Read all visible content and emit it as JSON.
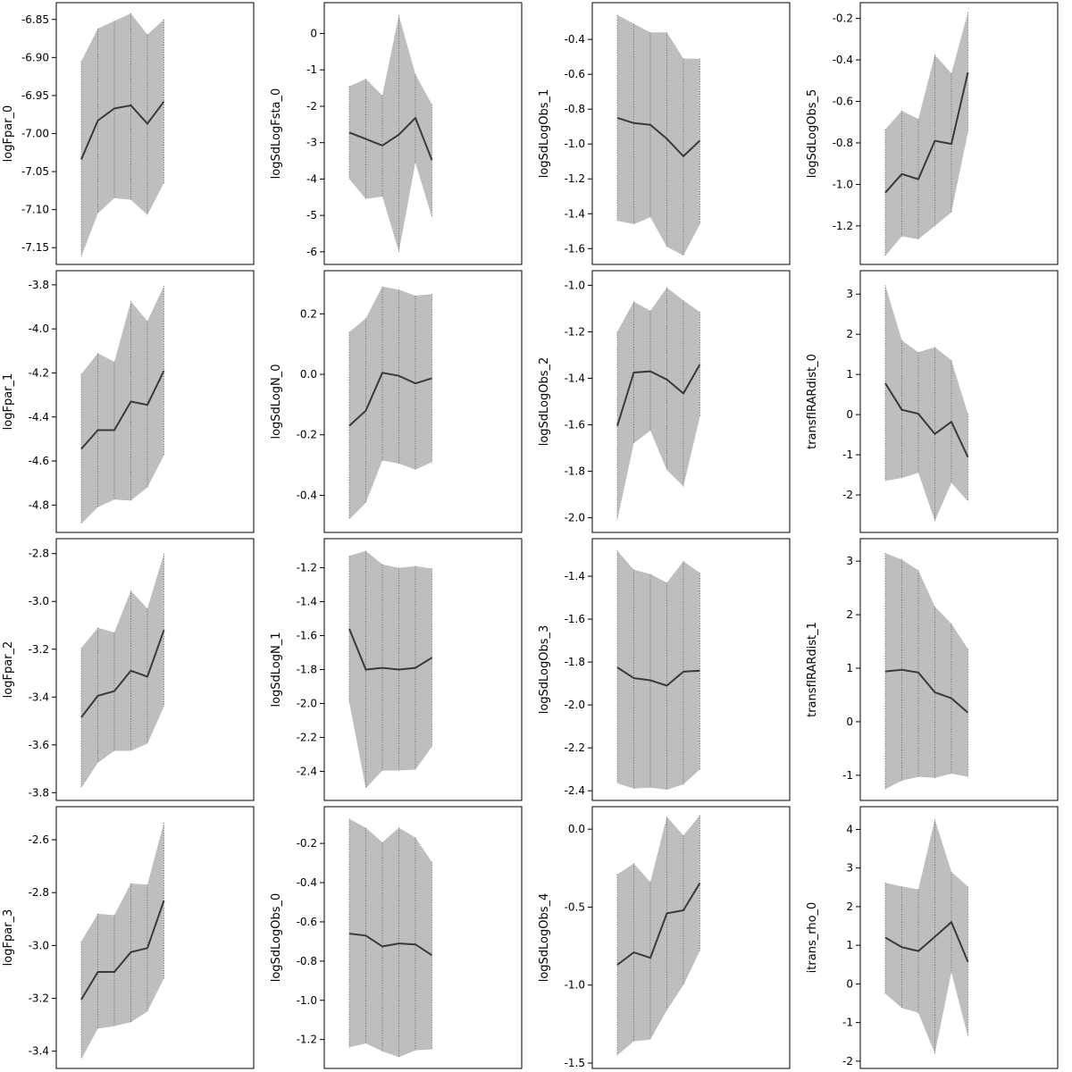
{
  "chart_data": [
    {
      "type": "area",
      "ylabel": "logFpar_0",
      "x": [
        1,
        2,
        3,
        4,
        5,
        6
      ],
      "yticks": [
        -6.85,
        -6.9,
        -6.95,
        -7.0,
        -7.05,
        -7.1,
        -7.15
      ],
      "ytick_labels": [
        "-6.85",
        "-6.90",
        "-6.95",
        "-7.00",
        "-7.05",
        "-7.10",
        "-7.15"
      ],
      "ylim": [
        -7.165,
        -6.835
      ],
      "mean": [
        -7.034,
        -6.983,
        -6.967,
        -6.963,
        -6.987,
        -6.958
      ],
      "upper": [
        -6.905,
        -6.862,
        -6.852,
        -6.842,
        -6.87,
        -6.85
      ],
      "lower": [
        -7.162,
        -7.105,
        -7.085,
        -7.087,
        -7.107,
        -7.065
      ]
    },
    {
      "type": "area",
      "ylabel": "logSdLogFsta_0",
      "x": [
        1,
        2,
        3,
        4,
        5,
        6
      ],
      "yticks": [
        0,
        -1,
        -2,
        -3,
        -4,
        -5,
        -6
      ],
      "ytick_labels": [
        "0",
        "-1",
        "-2",
        "-3",
        "-4",
        "-5",
        "-6"
      ],
      "ylim": [
        -6.2,
        0.7
      ],
      "mean": [
        -2.72,
        -2.9,
        -3.08,
        -2.78,
        -2.32,
        -3.48
      ],
      "upper": [
        -1.45,
        -1.25,
        -1.7,
        0.5,
        -1.12,
        -1.95
      ],
      "lower": [
        -4.0,
        -4.55,
        -4.48,
        -6.0,
        -3.55,
        -5.05
      ]
    },
    {
      "type": "area",
      "ylabel": "logSdLogObs_1",
      "x": [
        1,
        2,
        3,
        4,
        5,
        6
      ],
      "yticks": [
        -0.4,
        -0.6,
        -0.8,
        -1.0,
        -1.2,
        -1.4,
        -1.6
      ],
      "ytick_labels": [
        "-0.4",
        "-0.6",
        "-0.8",
        "-1.0",
        "-1.2",
        "-1.4",
        "-1.6"
      ],
      "ylim": [
        -1.66,
        -0.22
      ],
      "mean": [
        -0.85,
        -0.88,
        -0.89,
        -0.97,
        -1.07,
        -0.98
      ],
      "upper": [
        -0.26,
        -0.31,
        -0.36,
        -0.36,
        -0.51,
        -0.51
      ],
      "lower": [
        -1.44,
        -1.46,
        -1.42,
        -1.59,
        -1.64,
        -1.46
      ]
    },
    {
      "type": "area",
      "ylabel": "logSdLogObs_5",
      "x": [
        1,
        2,
        3,
        4,
        5,
        6
      ],
      "yticks": [
        -0.2,
        -0.4,
        -0.6,
        -0.8,
        -1.0,
        -1.2
      ],
      "ytick_labels": [
        "-0.2",
        "-0.4",
        "-0.6",
        "-0.8",
        "-1.0",
        "-1.2"
      ],
      "ylim": [
        -1.36,
        -0.15
      ],
      "mean": [
        -1.04,
        -0.95,
        -0.975,
        -0.79,
        -0.805,
        -0.46
      ],
      "upper": [
        -0.735,
        -0.645,
        -0.685,
        -0.375,
        -0.465,
        -0.17
      ],
      "lower": [
        -1.345,
        -1.25,
        -1.265,
        -1.2,
        -1.135,
        -0.75
      ]
    },
    {
      "type": "area",
      "ylabel": "logFpar_1",
      "x": [
        1,
        2,
        3,
        4,
        5,
        6
      ],
      "yticks": [
        -3.8,
        -4.0,
        -4.2,
        -4.4,
        -4.6,
        -4.8
      ],
      "ytick_labels": [
        "-3.8",
        "-4.0",
        "-4.2",
        "-4.4",
        "-4.6",
        "-4.8"
      ],
      "ylim": [
        -4.9,
        -3.76
      ],
      "mean": [
        -4.545,
        -4.46,
        -4.46,
        -4.33,
        -4.345,
        -4.19
      ],
      "upper": [
        -4.205,
        -4.11,
        -4.15,
        -3.875,
        -3.965,
        -3.805
      ],
      "lower": [
        -4.885,
        -4.81,
        -4.775,
        -4.78,
        -4.72,
        -4.575
      ]
    },
    {
      "type": "area",
      "ylabel": "logSdLogN_0",
      "x": [
        1,
        2,
        3,
        4,
        5,
        6
      ],
      "yticks": [
        0.2,
        0.0,
        -0.2,
        -0.4
      ],
      "ytick_labels": [
        "0.2",
        "0.0",
        "-0.2",
        "-0.4"
      ],
      "ylim": [
        -0.505,
        0.325
      ],
      "mean": [
        -0.17,
        -0.12,
        0.005,
        -0.005,
        -0.03,
        -0.013
      ],
      "upper": [
        0.14,
        0.185,
        0.29,
        0.28,
        0.26,
        0.265
      ],
      "lower": [
        -0.48,
        -0.425,
        -0.285,
        -0.295,
        -0.315,
        -0.29
      ]
    },
    {
      "type": "area",
      "ylabel": "logSdLogObs_2",
      "x": [
        1,
        2,
        3,
        4,
        5,
        6
      ],
      "yticks": [
        -1.0,
        -1.2,
        -1.4,
        -1.6,
        -1.8,
        -2.0
      ],
      "ytick_labels": [
        "-1.0",
        "-1.2",
        "-1.4",
        "-1.6",
        "-1.8",
        "-2.0"
      ],
      "ylim": [
        -2.04,
        -0.96
      ],
      "mean": [
        -1.605,
        -1.375,
        -1.37,
        -1.405,
        -1.465,
        -1.34
      ],
      "upper": [
        -1.2,
        -1.07,
        -1.11,
        -1.01,
        -1.065,
        -1.115
      ],
      "lower": [
        -2.01,
        -1.68,
        -1.625,
        -1.795,
        -1.865,
        -1.565
      ]
    },
    {
      "type": "area",
      "ylabel": "transfIRARdist_0",
      "x": [
        1,
        2,
        3,
        4,
        5,
        6
      ],
      "yticks": [
        3,
        2,
        1,
        0,
        -1,
        -2
      ],
      "ytick_labels": [
        "3",
        "2",
        "1",
        "0",
        "-1",
        "-2"
      ],
      "ylim": [
        -2.8,
        3.45
      ],
      "mean": [
        0.78,
        0.12,
        0.02,
        -0.48,
        -0.18,
        -1.06
      ],
      "upper": [
        3.22,
        1.85,
        1.55,
        1.68,
        1.35,
        0.02
      ],
      "lower": [
        -1.65,
        -1.58,
        -1.45,
        -2.65,
        -1.7,
        -2.16
      ]
    },
    {
      "type": "area",
      "ylabel": "logFpar_2",
      "x": [
        1,
        2,
        3,
        4,
        5,
        6
      ],
      "yticks": [
        -2.8,
        -3.0,
        -3.2,
        -3.4,
        -3.6,
        -3.8
      ],
      "ytick_labels": [
        "-2.8",
        "-3.0",
        "-3.2",
        "-3.4",
        "-3.6",
        "-3.8"
      ],
      "ylim": [
        -3.81,
        -2.76
      ],
      "mean": [
        -3.485,
        -3.395,
        -3.375,
        -3.29,
        -3.315,
        -3.12
      ],
      "upper": [
        -3.195,
        -3.11,
        -3.13,
        -2.955,
        -3.03,
        -2.8
      ],
      "lower": [
        -3.78,
        -3.675,
        -3.625,
        -3.625,
        -3.595,
        -3.44
      ]
    },
    {
      "type": "area",
      "ylabel": "logSdLogN_1",
      "x": [
        1,
        2,
        3,
        4,
        5,
        6
      ],
      "yticks": [
        -1.2,
        -1.4,
        -1.6,
        -1.8,
        -2.0,
        -2.2,
        -2.4
      ],
      "ytick_labels": [
        "-1.2",
        "-1.4",
        "-1.6",
        "-1.8",
        "-2.0",
        "-2.2",
        "-2.4"
      ],
      "ylim": [
        -2.54,
        -1.06
      ],
      "mean": [
        -1.56,
        -1.8,
        -1.79,
        -1.8,
        -1.79,
        -1.73
      ],
      "upper": [
        -1.13,
        -1.1,
        -1.18,
        -1.2,
        -1.19,
        -1.205
      ],
      "lower": [
        -1.995,
        -2.5,
        -2.395,
        -2.395,
        -2.39,
        -2.255
      ]
    },
    {
      "type": "area",
      "ylabel": "logSdLogObs_3",
      "x": [
        1,
        2,
        3,
        4,
        5,
        6
      ],
      "yticks": [
        -1.4,
        -1.6,
        -1.8,
        -2.0,
        -2.2,
        -2.4
      ],
      "ytick_labels": [
        "-1.4",
        "-1.6",
        "-1.8",
        "-2.0",
        "-2.2",
        "-2.4"
      ],
      "ylim": [
        -2.42,
        -1.25
      ],
      "mean": [
        -1.825,
        -1.875,
        -1.885,
        -1.91,
        -1.845,
        -1.84
      ],
      "upper": [
        -1.28,
        -1.37,
        -1.39,
        -1.43,
        -1.33,
        -1.385
      ],
      "lower": [
        -2.365,
        -2.39,
        -2.385,
        -2.395,
        -2.37,
        -2.3
      ]
    },
    {
      "type": "area",
      "ylabel": "transfIRARdist_1",
      "x": [
        1,
        2,
        3,
        4,
        5,
        6
      ],
      "yticks": [
        3,
        2,
        1,
        0,
        -1
      ],
      "ytick_labels": [
        "3",
        "2",
        "1",
        "0",
        "-1"
      ],
      "ylim": [
        -1.37,
        3.32
      ],
      "mean": [
        0.94,
        0.97,
        0.92,
        0.55,
        0.44,
        0.17
      ],
      "upper": [
        3.15,
        3.03,
        2.83,
        2.15,
        1.83,
        1.36
      ],
      "lower": [
        -1.26,
        -1.1,
        -1.03,
        -1.05,
        -0.97,
        -1.03
      ]
    },
    {
      "type": "area",
      "ylabel": "logFpar_3",
      "x": [
        1,
        2,
        3,
        4,
        5,
        6
      ],
      "yticks": [
        -2.6,
        -2.8,
        -3.0,
        -3.2,
        -3.4
      ],
      "ytick_labels": [
        "-2.6",
        "-2.8",
        "-3.0",
        "-3.2",
        "-3.4"
      ],
      "ylim": [
        -3.445,
        -2.495
      ],
      "mean": [
        -3.205,
        -3.1,
        -3.1,
        -3.025,
        -3.01,
        -2.83
      ],
      "upper": [
        -2.985,
        -2.88,
        -2.885,
        -2.765,
        -2.77,
        -2.535
      ],
      "lower": [
        -3.43,
        -3.315,
        -3.305,
        -3.29,
        -3.25,
        -3.125
      ]
    },
    {
      "type": "area",
      "ylabel": "logSdLogObs_0",
      "x": [
        1,
        2,
        3,
        4,
        5,
        6
      ],
      "yticks": [
        -0.2,
        -0.4,
        -0.6,
        -0.8,
        -1.0,
        -1.2
      ],
      "ytick_labels": [
        "-0.2",
        "-0.4",
        "-0.6",
        "-0.8",
        "-1.0",
        "-1.2"
      ],
      "ylim": [
        -1.32,
        -0.04
      ],
      "mean": [
        -0.66,
        -0.67,
        -0.725,
        -0.71,
        -0.715,
        -0.77
      ],
      "upper": [
        -0.075,
        -0.12,
        -0.195,
        -0.12,
        -0.17,
        -0.295
      ],
      "lower": [
        -1.24,
        -1.22,
        -1.26,
        -1.29,
        -1.255,
        -1.25
      ]
    },
    {
      "type": "area",
      "ylabel": "logSdLogObs_4",
      "x": [
        1,
        2,
        3,
        4,
        5,
        6
      ],
      "yticks": [
        0.0,
        -0.5,
        -1.0,
        -1.5
      ],
      "ytick_labels": [
        "0.0",
        "-0.5",
        "-1.0",
        "-1.5"
      ],
      "ylim": [
        -1.5,
        0.11
      ],
      "mean": [
        -0.87,
        -0.79,
        -0.825,
        -0.54,
        -0.52,
        -0.345
      ],
      "upper": [
        -0.29,
        -0.22,
        -0.34,
        0.08,
        -0.04,
        0.09
      ],
      "lower": [
        -1.45,
        -1.36,
        -1.35,
        -1.16,
        -1.0,
        -0.78
      ]
    },
    {
      "type": "area",
      "ylabel": "itrans_rho_0",
      "x": [
        1,
        2,
        3,
        4,
        5,
        6
      ],
      "yticks": [
        4,
        3,
        2,
        1,
        0,
        -1,
        -2
      ],
      "ytick_labels": [
        "4",
        "3",
        "2",
        "1",
        "0",
        "-1",
        "-2"
      ],
      "ylim": [
        -2.05,
        4.45
      ],
      "mean": [
        1.2,
        0.95,
        0.85,
        1.22,
        1.6,
        0.57
      ],
      "upper": [
        2.62,
        2.52,
        2.45,
        4.26,
        2.9,
        2.52
      ],
      "lower": [
        -0.25,
        -0.62,
        -0.75,
        -1.8,
        0.3,
        -1.37
      ]
    }
  ]
}
